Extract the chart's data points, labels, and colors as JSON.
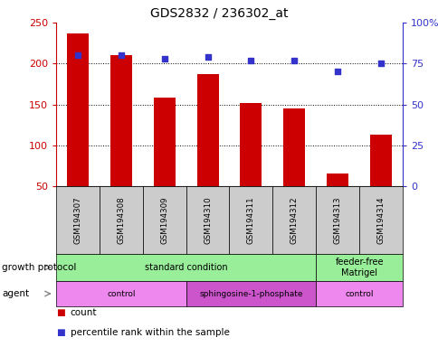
{
  "title": "GDS2832 / 236302_at",
  "samples": [
    "GSM194307",
    "GSM194308",
    "GSM194309",
    "GSM194310",
    "GSM194311",
    "GSM194312",
    "GSM194313",
    "GSM194314"
  ],
  "counts": [
    237,
    210,
    158,
    187,
    152,
    145,
    65,
    113
  ],
  "percentile_ranks": [
    80,
    80,
    78,
    79,
    77,
    77,
    70,
    75
  ],
  "ylim_left": [
    50,
    250
  ],
  "yticks_left": [
    50,
    100,
    150,
    200,
    250
  ],
  "ylim_right": [
    0,
    100
  ],
  "yticks_right": [
    0,
    25,
    50,
    75,
    100
  ],
  "bar_color": "#cc0000",
  "dot_color": "#3333cc",
  "bar_width": 0.5,
  "protocol_groups": [
    {
      "label": "standard condition",
      "start": 0,
      "end": 6,
      "color": "#99ee99"
    },
    {
      "label": "feeder-free\nMatrigel",
      "start": 6,
      "end": 8,
      "color": "#99ee99"
    }
  ],
  "agent_groups": [
    {
      "label": "control",
      "start": 0,
      "end": 3,
      "color": "#ee88ee"
    },
    {
      "label": "sphingosine-1-phosphate",
      "start": 3,
      "end": 6,
      "color": "#cc55cc"
    },
    {
      "label": "control",
      "start": 6,
      "end": 8,
      "color": "#ee88ee"
    }
  ],
  "grid_lines": [
    100,
    150,
    200
  ],
  "left_label_color": "#cc0000",
  "right_label_color": "#3333cc"
}
